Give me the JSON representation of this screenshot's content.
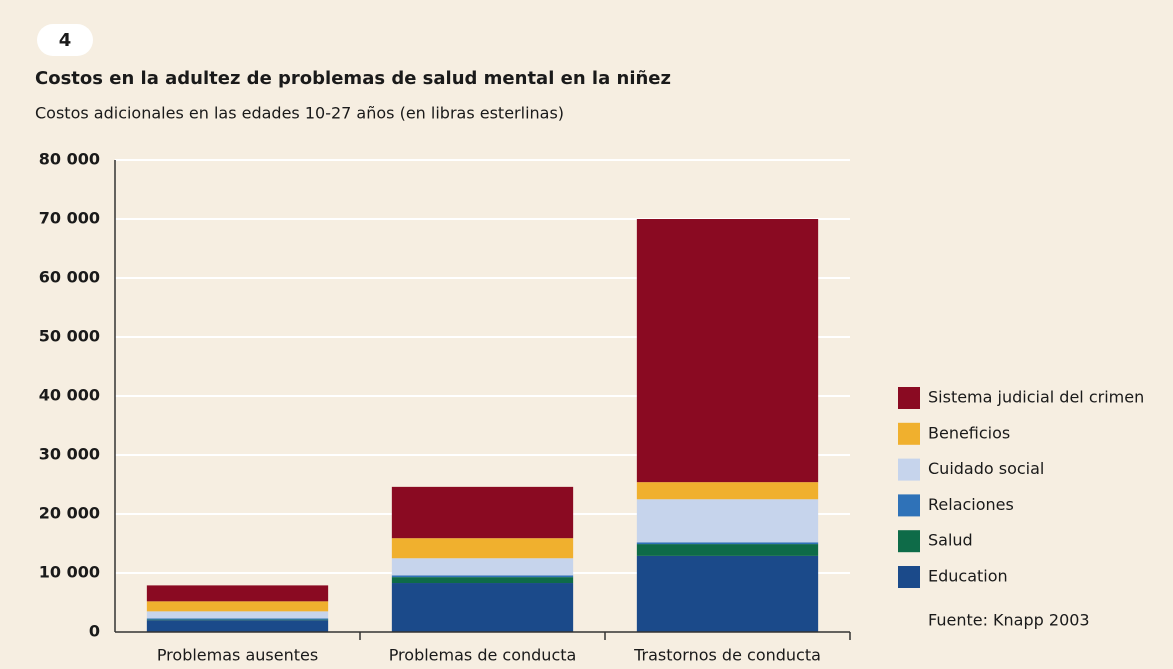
{
  "chart_data": {
    "type": "stacked_bar",
    "badge": "4",
    "title": "Costos en la adultez de problemas de salud mental en la niñez",
    "subtitle": "Costos adicionales en las edades 10-27 años (en libras esterlinas)",
    "source": "Fuente: Knapp 2003",
    "categories": [
      "Problemas ausentes",
      "Problemas de conducta",
      "Trastornos de conducta"
    ],
    "series": [
      {
        "name": "Education",
        "color": "#1b4a8a",
        "values": [
          2000,
          8300,
          12900
        ]
      },
      {
        "name": "Salud",
        "color": "#0e6b48",
        "values": [
          100,
          1000,
          2000
        ]
      },
      {
        "name": "Relaciones",
        "color": "#2f72b8",
        "values": [
          200,
          300,
          300
        ]
      },
      {
        "name": "Cuidado social",
        "color": "#c6d4ec",
        "values": [
          1200,
          2900,
          7300
        ]
      },
      {
        "name": "Beneficios",
        "color": "#f0b02e",
        "values": [
          1700,
          3400,
          2900
        ]
      },
      {
        "name": "Sistema judicial del crimen",
        "color": "#8a0a22",
        "values": [
          2700,
          8700,
          44600
        ]
      }
    ],
    "ylim": [
      0,
      80000
    ],
    "yticks": [
      0,
      {
        "value": 10000,
        "label": "10 000"
      },
      {
        "value": 20000,
        "label": "20 000"
      },
      {
        "value": 30000,
        "label": "30 000"
      },
      {
        "value": 40000,
        "label": "40 000"
      },
      {
        "value": 50000,
        "label": "50 000"
      },
      {
        "value": 60000,
        "label": "60 000"
      },
      {
        "value": 70000,
        "label": "70 000"
      },
      {
        "value": 80000,
        "label": "80 000"
      }
    ],
    "grid": true
  }
}
